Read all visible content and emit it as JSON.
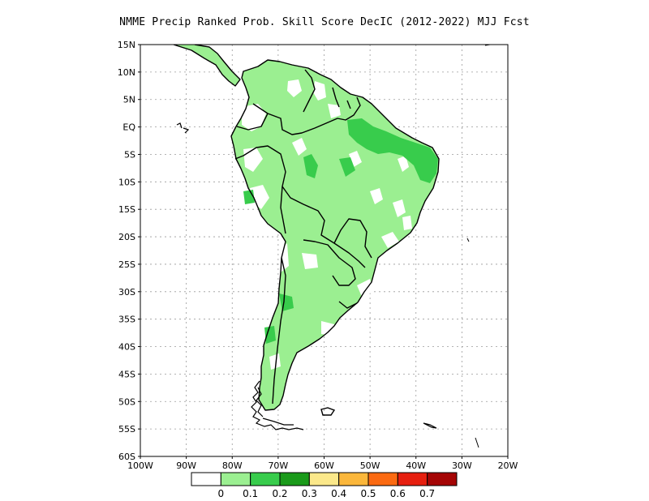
{
  "title": "NMME Precip Ranked Prob. Skill Score DecIC (2012-2022) MJJ Fcst",
  "map": {
    "lon_range": [
      -100,
      -20
    ],
    "lat_range": [
      -60,
      15
    ],
    "lat_labels": [
      "15N",
      "10N",
      "5N",
      "EQ",
      "5S",
      "10S",
      "15S",
      "20S",
      "25S",
      "30S",
      "35S",
      "40S",
      "45S",
      "50S",
      "55S",
      "60S"
    ],
    "lat_values": [
      15,
      10,
      5,
      0,
      -5,
      -10,
      -15,
      -20,
      -25,
      -30,
      -35,
      -40,
      -45,
      -50,
      -55,
      -60
    ],
    "lon_labels": [
      "100W",
      "90W",
      "80W",
      "70W",
      "60W",
      "50W",
      "40W",
      "30W",
      "20W"
    ],
    "lon_values": [
      -100,
      -90,
      -80,
      -70,
      -60,
      -50,
      -40,
      -30,
      -20
    ],
    "grid": true,
    "gridline_style": "dotted",
    "region": "South America"
  },
  "colorbar": {
    "colors": [
      "#ffffff",
      "#9bef91",
      "#38cc4c",
      "#1a9a1a",
      "#fbe88a",
      "#fbb73b",
      "#fb6a12",
      "#e61f0f",
      "#a50505"
    ],
    "labels": [
      "0",
      "0.1",
      "0.2",
      "0.3",
      "0.4",
      "0.5",
      "0.6",
      "0.7"
    ]
  },
  "colors": {
    "land_outline": "#000000",
    "skill_low": "#9bef91",
    "skill_mid": "#38cc4c",
    "frame": "#000000"
  }
}
